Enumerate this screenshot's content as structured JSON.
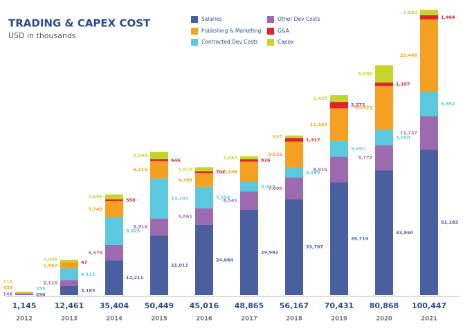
{
  "chart_data": {
    "type": "stacked_bar",
    "title": "TRADING & CAPEX COST",
    "subtitle": "USD in thousands",
    "categories": [
      "2012",
      "2013",
      "2014",
      "2015",
      "2016",
      "2017",
      "2018",
      "2019",
      "2020",
      "2021"
    ],
    "series": [
      {
        "name": "Salaries",
        "color": "#4a5f9f",
        "values": [
          290,
          3183,
          12211,
          21011,
          24684,
          29992,
          33797,
          39714,
          43950,
          51183
        ],
        "value_labels": [
          "290",
          "3,183",
          "12,211",
          "21,011",
          "24,684",
          "29,992",
          "33,797",
          "39,714",
          "43,950",
          "51,183"
        ]
      },
      {
        "name": "Other Dev Costs",
        "color": "#9c6aae",
        "values": [
          148,
          2116,
          5379,
          5910,
          5861,
          6541,
          7600,
          8915,
          8772,
          11737
        ],
        "value_labels": [
          "148",
          "2,116",
          "5,379",
          "5,910",
          "5,861",
          "6,541",
          "7,600",
          "8,915",
          "8,772",
          "11,737"
        ]
      },
      {
        "name": "Contracted Dev Costs",
        "color": "#5ac8de",
        "values": [
          259,
          4112,
          9825,
          14103,
          7554,
          3313,
          3564,
          5697,
          5550,
          8652
        ],
        "value_labels": [
          "259",
          "4,112",
          "9,825",
          "14,103",
          "7,554",
          "3,313",
          "3,564",
          "5,697",
          "5,550",
          "8,652"
        ]
      },
      {
        "name": "Publishing & Marketing",
        "color": "#f5a020",
        "values": [
          338,
          1997,
          5745,
          6115,
          4792,
          7106,
          9032,
          11404,
          15373,
          25448
        ],
        "value_labels": [
          "338",
          "1,997",
          "5,745",
          "6,115",
          "4,792",
          "7,106",
          "9,032",
          "11,404",
          "15,373",
          "25,448"
        ]
      },
      {
        "name": "G&A",
        "color": "#e1222b",
        "values": [
          null,
          47,
          558,
          646,
          706,
          826,
          1317,
          2272,
          1157,
          1464
        ],
        "value_labels": [
          null,
          "47",
          "558",
          "646",
          "706",
          "826",
          "1,317",
          "2,272",
          "1,157",
          "1,464"
        ]
      },
      {
        "name": "Capex",
        "color": "#c6d42b",
        "values": [
          110,
          1006,
          1686,
          2664,
          1419,
          1087,
          857,
          2429,
          6066,
          1963
        ],
        "value_labels": [
          "110",
          "1,006",
          "1,686",
          "2,664",
          "1,419",
          "1,087",
          "857",
          "2,429",
          "6,066",
          "1,963"
        ]
      }
    ],
    "totals": [
      1145,
      12461,
      35404,
      50449,
      45016,
      48865,
      56167,
      70431,
      80868,
      100447
    ],
    "total_labels": [
      "1,145",
      "12,461",
      "35,404",
      "50,449",
      "45,016",
      "48,865",
      "56,167",
      "70,431",
      "80,868",
      "100,447"
    ]
  }
}
